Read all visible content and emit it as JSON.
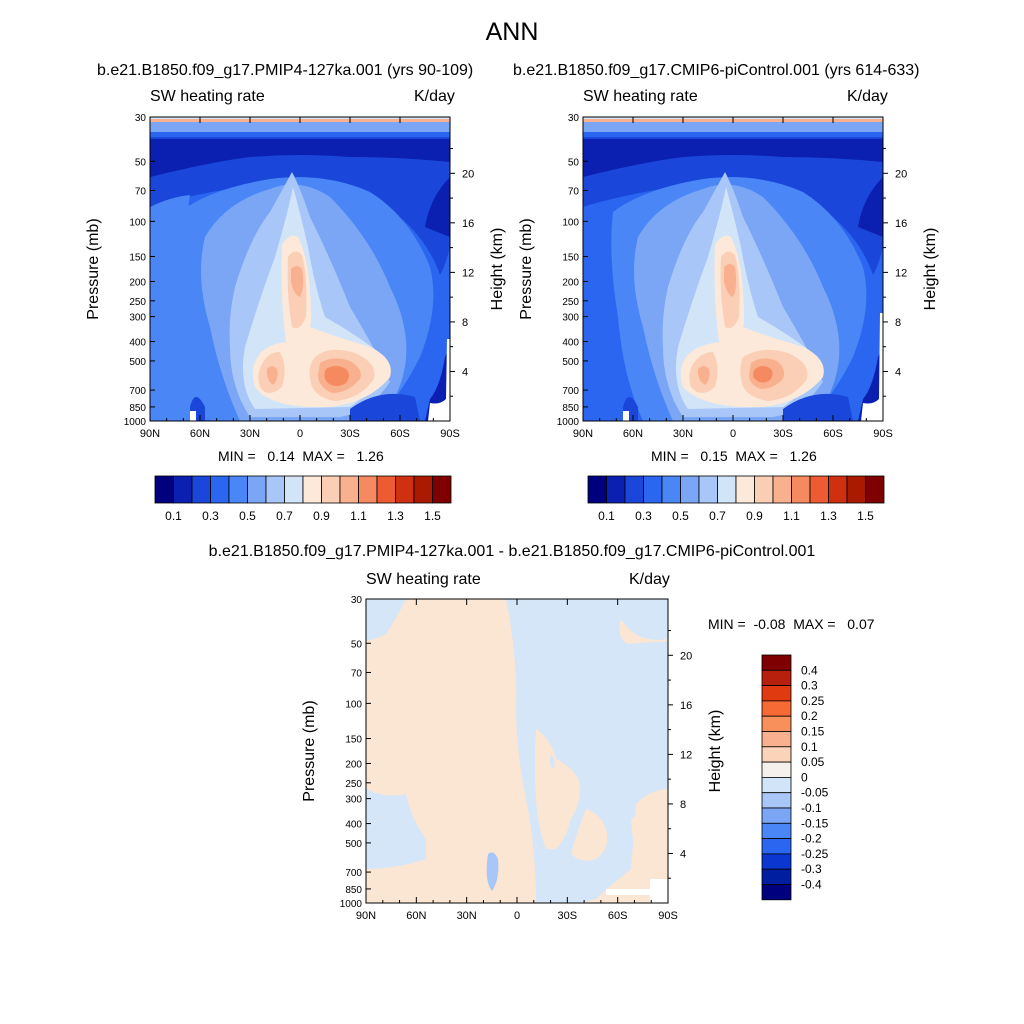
{
  "title": "ANN",
  "colors": {
    "scale15": [
      "#00007f",
      "#0b1fb0",
      "#1a46d9",
      "#2a66f0",
      "#4a86f5",
      "#7aa6f5",
      "#a8c6f7",
      "#d2e4f8",
      "#fde9d9",
      "#fbcfb6",
      "#f9b08e",
      "#f5895f",
      "#ee5b33",
      "#cf3010",
      "#a91a00",
      "#7f0000"
    ],
    "diff_neg": "#d4e6f8",
    "diff_neg2": "#a8c6f7",
    "diff_pos": "#fbe6d4",
    "diff_key": [
      "#7f0000",
      "#b8200e",
      "#e03a10",
      "#f66a36",
      "#f8905c",
      "#f9b08e",
      "#fbd3b8",
      "#f5f0ec",
      "#d2e4f8",
      "#a8c6f7",
      "#7aa6f5",
      "#4a86f5",
      "#2a66f0",
      "#0b37d0",
      "#001ea0",
      "#00007f"
    ]
  },
  "chart_data": [
    {
      "type": "heatmap",
      "panel": "top-left",
      "title": "b.e21.B1850.f09_g17.PMIP4-127ka.001 (yrs 90-109)",
      "left_label": "SW heating rate",
      "right_label": "K/day",
      "xlabel": "",
      "ylabel": "Pressure (mb)",
      "ylabel_right": "Height (km)",
      "x_ticks": [
        "90N",
        "60N",
        "30N",
        "0",
        "30S",
        "60S",
        "90S"
      ],
      "x_range": [
        90,
        -90
      ],
      "y_ticks": [
        30,
        50,
        70,
        100,
        150,
        200,
        250,
        300,
        400,
        500,
        700,
        850,
        1000
      ],
      "y_range": [
        30,
        1000
      ],
      "y_scale": "log",
      "height_ticks": [
        20,
        16,
        12,
        8,
        4
      ],
      "stats": "MIN =   0.14  MAX =   1.26",
      "min": 0.14,
      "max": 1.26,
      "colorbar_labels": [
        "0.1",
        "0.3",
        "0.5",
        "0.7",
        "0.9",
        "1.1",
        "1.3",
        "1.5"
      ],
      "colorbar_levels": [
        0.1,
        0.2,
        0.3,
        0.4,
        0.5,
        0.6,
        0.7,
        0.8,
        0.9,
        1.0,
        1.1,
        1.2,
        1.3,
        1.4,
        1.5
      ]
    },
    {
      "type": "heatmap",
      "panel": "top-right",
      "title": "b.e21.B1850.f09_g17.CMIP6-piControl.001 (yrs 614-633)",
      "left_label": "SW heating rate",
      "right_label": "K/day",
      "xlabel": "",
      "ylabel": "Pressure (mb)",
      "ylabel_right": "Height (km)",
      "x_ticks": [
        "90N",
        "60N",
        "30N",
        "0",
        "30S",
        "60S",
        "90S"
      ],
      "x_range": [
        90,
        -90
      ],
      "y_ticks": [
        30,
        50,
        70,
        100,
        150,
        200,
        250,
        300,
        400,
        500,
        700,
        850,
        1000
      ],
      "y_range": [
        30,
        1000
      ],
      "y_scale": "log",
      "height_ticks": [
        20,
        16,
        12,
        8,
        4
      ],
      "stats": "MIN =   0.15  MAX =   1.26",
      "min": 0.15,
      "max": 1.26,
      "colorbar_labels": [
        "0.1",
        "0.3",
        "0.5",
        "0.7",
        "0.9",
        "1.1",
        "1.3",
        "1.5"
      ],
      "colorbar_levels": [
        0.1,
        0.2,
        0.3,
        0.4,
        0.5,
        0.6,
        0.7,
        0.8,
        0.9,
        1.0,
        1.1,
        1.2,
        1.3,
        1.4,
        1.5
      ]
    },
    {
      "type": "heatmap",
      "panel": "bottom",
      "title": "b.e21.B1850.f09_g17.PMIP4-127ka.001 - b.e21.B1850.f09_g17.CMIP6-piControl.001",
      "left_label": "SW heating rate",
      "right_label": "K/day",
      "xlabel": "",
      "ylabel": "Pressure (mb)",
      "ylabel_right": "Height (km)",
      "x_ticks": [
        "90N",
        "60N",
        "30N",
        "0",
        "30S",
        "60S",
        "90S"
      ],
      "x_range": [
        90,
        -90
      ],
      "y_ticks": [
        30,
        50,
        70,
        100,
        150,
        200,
        250,
        300,
        400,
        500,
        700,
        850,
        1000
      ],
      "y_range": [
        30,
        1000
      ],
      "y_scale": "log",
      "height_ticks": [
        20,
        16,
        12,
        8,
        4
      ],
      "stats": "MIN =  -0.08  MAX =   0.07",
      "min": -0.08,
      "max": 0.07,
      "colorbar_labels": [
        "0.4",
        "0.3",
        "0.25",
        "0.2",
        "0.15",
        "0.1",
        "0.05",
        "0",
        "-0.05",
        "-0.1",
        "-0.15",
        "-0.2",
        "-0.25",
        "-0.3",
        "-0.4"
      ],
      "colorbar_levels": [
        -0.4,
        -0.3,
        -0.25,
        -0.2,
        -0.15,
        -0.1,
        -0.05,
        0,
        0.05,
        0.1,
        0.15,
        0.2,
        0.25,
        0.3,
        0.4
      ]
    }
  ]
}
